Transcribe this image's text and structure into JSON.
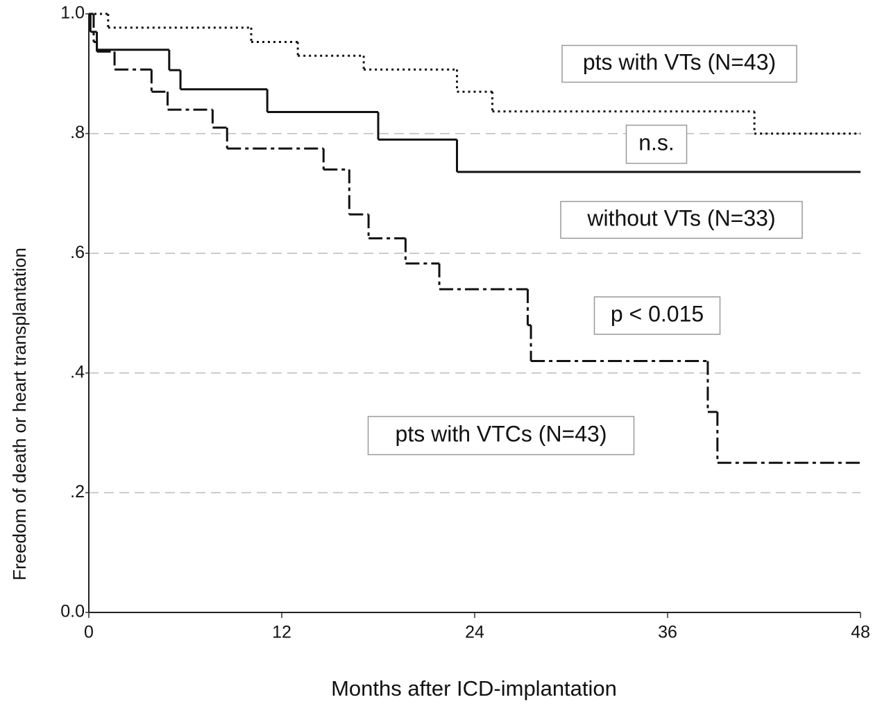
{
  "chart_data": {
    "type": "step",
    "x_label": "Months after ICD-implantation",
    "y_label": "Freedom of death or heart transplantation",
    "xlim": [
      0,
      48
    ],
    "xticks": [
      0,
      12,
      24,
      36,
      48
    ],
    "ylim": [
      0,
      1
    ],
    "yticks": [
      {
        "value": 0,
        "label": "0.0"
      },
      {
        "value": 0.2,
        "label": ".2"
      },
      {
        "value": 0.4,
        "label": ".4"
      },
      {
        "value": 0.6,
        "label": ".6"
      },
      {
        "value": 0.8,
        "label": ".8"
      },
      {
        "value": 1,
        "label": "1.0"
      }
    ],
    "grid": true,
    "series": [
      {
        "name": "pts with VTs (N=43)",
        "color": "#111111",
        "style": "dotted",
        "x": [
          0,
          1.2,
          10.1,
          13.0,
          17.1,
          22.9,
          25.1,
          41.4
        ],
        "values": [
          1.0,
          0.977,
          0.953,
          0.93,
          0.907,
          0.87,
          0.837,
          0.8
        ]
      },
      {
        "name": "without VTs (N=33)",
        "color": "#111111",
        "style": "solid",
        "x": [
          0,
          0.1,
          0.5,
          5.0,
          5.7,
          11.1,
          18.0,
          22.9
        ],
        "values": [
          1.0,
          0.97,
          0.94,
          0.906,
          0.874,
          0.836,
          0.79,
          0.736
        ]
      },
      {
        "name": "pts with VTCs (N=43)",
        "color": "#111111",
        "style": "dashdot",
        "x": [
          0,
          0.3,
          0.5,
          1.6,
          3.9,
          4.9,
          7.7,
          8.6,
          14.6,
          16.2,
          17.4,
          19.7,
          21.8,
          27.3,
          27.5,
          38.5,
          39.1
        ],
        "values": [
          1.0,
          0.953,
          0.937,
          0.907,
          0.87,
          0.84,
          0.81,
          0.775,
          0.74,
          0.665,
          0.625,
          0.583,
          0.54,
          0.48,
          0.42,
          0.335,
          0.25
        ]
      }
    ],
    "annotations": [
      {
        "text": "n.s."
      },
      {
        "text": "p < 0.015"
      }
    ]
  }
}
